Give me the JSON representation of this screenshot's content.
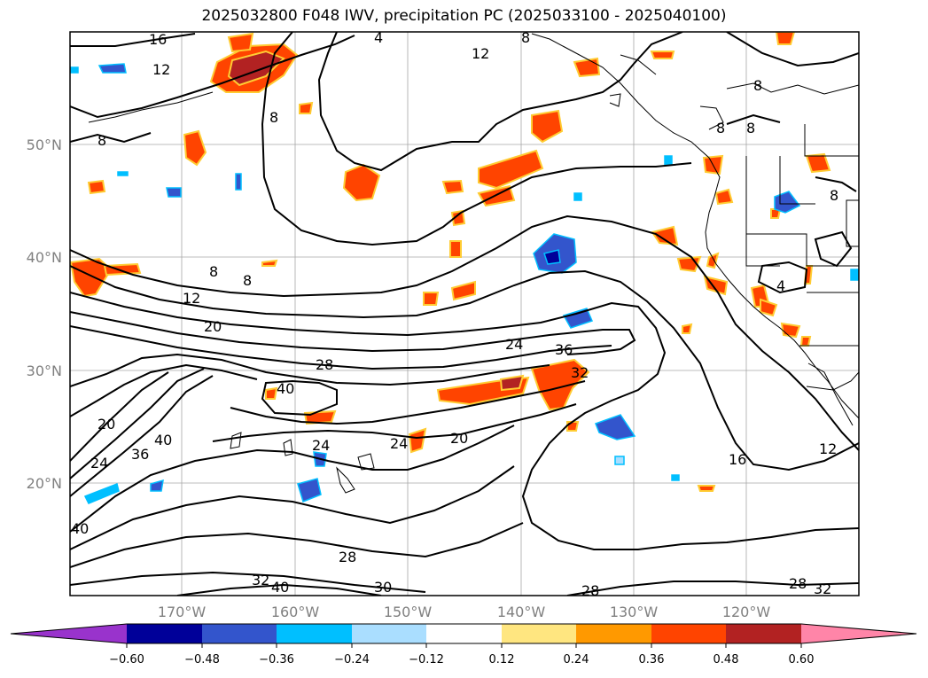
{
  "title": "2025032800 F048 IWV, precipitation PC (2025033100 - 2025040100)",
  "map": {
    "lat_labels": [
      "50°N",
      "40°N",
      "30°N",
      "20°N"
    ],
    "lon_labels": [
      "170°W",
      "160°W",
      "150°W",
      "140°W",
      "130°W",
      "120°W"
    ],
    "iwv_contour_labels": [
      "16",
      "12",
      "8",
      "4",
      "8",
      "12",
      "8",
      "8",
      "8",
      "8",
      "8",
      "8",
      "8",
      "12",
      "20",
      "28",
      "24",
      "36",
      "32",
      "40",
      "20",
      "24",
      "36",
      "40",
      "24",
      "24",
      "20",
      "16",
      "12",
      "40",
      "28",
      "32",
      "40",
      "30",
      "28",
      "28",
      "32",
      "4"
    ]
  },
  "colorbar": {
    "ticks": [
      "−0.60",
      "−0.48",
      "−0.36",
      "−0.24",
      "−0.12",
      "0.12",
      "0.24",
      "0.36",
      "0.48",
      "0.60"
    ],
    "colors": [
      "#9933cc",
      "#000099",
      "#3355cc",
      "#00bfff",
      "#aadeff",
      "#ffffff",
      "#ffe680",
      "#ff9900",
      "#ff4400",
      "#b22222",
      "#ff85a8"
    ]
  }
}
